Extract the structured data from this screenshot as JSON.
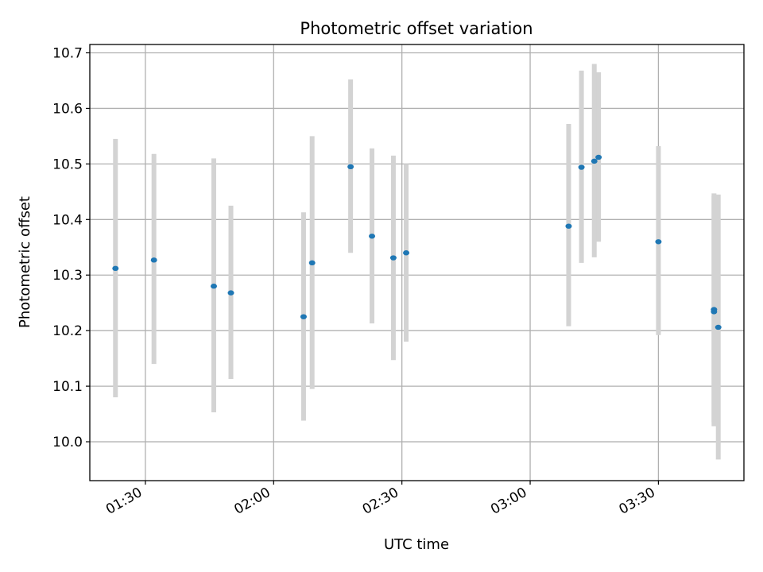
{
  "chart_data": {
    "type": "scatter",
    "title": "Photometric offset variation",
    "xlabel": "UTC time",
    "ylabel": "Photometric offset",
    "x_ticks": [
      "01:30",
      "02:00",
      "02:30",
      "03:00",
      "03:30"
    ],
    "y_ticks": [
      "10.0",
      "10.1",
      "10.2",
      "10.3",
      "10.4",
      "10.5",
      "10.6",
      "10.7"
    ],
    "xlim": [
      "01:17",
      "03:50"
    ],
    "ylim": [
      9.93,
      10.715
    ],
    "grid": true,
    "marker_color": "#1f77b4",
    "errorbar_color": "#d3d3d3",
    "points": [
      {
        "x": "01:23",
        "y": 10.312,
        "ylow": 10.08,
        "yhigh": 10.545
      },
      {
        "x": "01:32",
        "y": 10.327,
        "ylow": 10.14,
        "yhigh": 10.518
      },
      {
        "x": "01:46",
        "y": 10.28,
        "ylow": 10.053,
        "yhigh": 10.51
      },
      {
        "x": "01:50",
        "y": 10.268,
        "ylow": 10.113,
        "yhigh": 10.425
      },
      {
        "x": "02:07",
        "y": 10.225,
        "ylow": 10.038,
        "yhigh": 10.413
      },
      {
        "x": "02:09",
        "y": 10.322,
        "ylow": 10.095,
        "yhigh": 10.55
      },
      {
        "x": "02:18",
        "y": 10.495,
        "ylow": 10.34,
        "yhigh": 10.652
      },
      {
        "x": "02:23",
        "y": 10.37,
        "ylow": 10.213,
        "yhigh": 10.528
      },
      {
        "x": "02:28",
        "y": 10.331,
        "ylow": 10.147,
        "yhigh": 10.515
      },
      {
        "x": "02:31",
        "y": 10.34,
        "ylow": 10.18,
        "yhigh": 10.5
      },
      {
        "x": "03:09",
        "y": 10.388,
        "ylow": 10.208,
        "yhigh": 10.572
      },
      {
        "x": "03:12",
        "y": 10.494,
        "ylow": 10.322,
        "yhigh": 10.668
      },
      {
        "x": "03:15",
        "y": 10.505,
        "ylow": 10.332,
        "yhigh": 10.68
      },
      {
        "x": "03:16",
        "y": 10.512,
        "ylow": 10.36,
        "yhigh": 10.665
      },
      {
        "x": "03:30",
        "y": 10.36,
        "ylow": 10.192,
        "yhigh": 10.532
      },
      {
        "x": "03:43",
        "y": 10.238,
        "ylow": 10.035,
        "yhigh": 10.447
      },
      {
        "x": "03:43",
        "y": 10.234,
        "ylow": 10.028,
        "yhigh": 10.443
      },
      {
        "x": "03:44",
        "y": 10.206,
        "ylow": 9.968,
        "yhigh": 10.445
      }
    ]
  }
}
